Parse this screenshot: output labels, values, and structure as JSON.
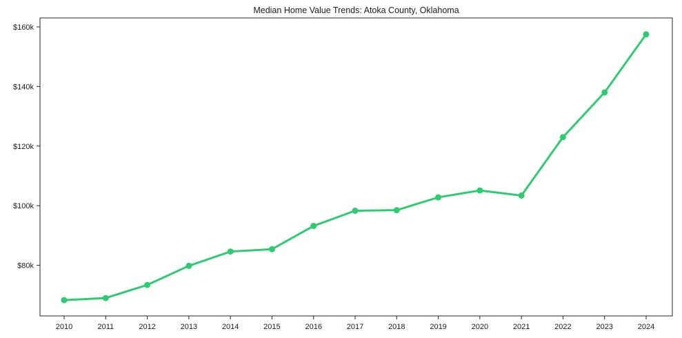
{
  "chart_data": {
    "type": "line",
    "title": "Median Home Value Trends: Atoka County, Oklahoma",
    "xlabel": "",
    "ylabel": "",
    "x": [
      2010,
      2011,
      2012,
      2013,
      2014,
      2015,
      2016,
      2017,
      2018,
      2019,
      2020,
      2021,
      2022,
      2023,
      2024
    ],
    "series": [
      {
        "name": "Median Home Value",
        "values": [
          68300,
          69000,
          73400,
          79800,
          84600,
          85400,
          93200,
          98300,
          98500,
          102800,
          105100,
          103400,
          123000,
          138000,
          157500
        ]
      }
    ],
    "ylim": [
      63000,
      163000
    ],
    "yticks": [
      80000,
      100000,
      120000,
      140000,
      160000
    ],
    "ytick_labels": [
      "$80k",
      "$100k",
      "$120k",
      "$140k",
      "$160k"
    ],
    "grid": false,
    "legend_position": "none",
    "line_color": "#2ecc71",
    "marker": "circle",
    "axis_color": "#262626",
    "text_color": "#1a1a1a"
  }
}
